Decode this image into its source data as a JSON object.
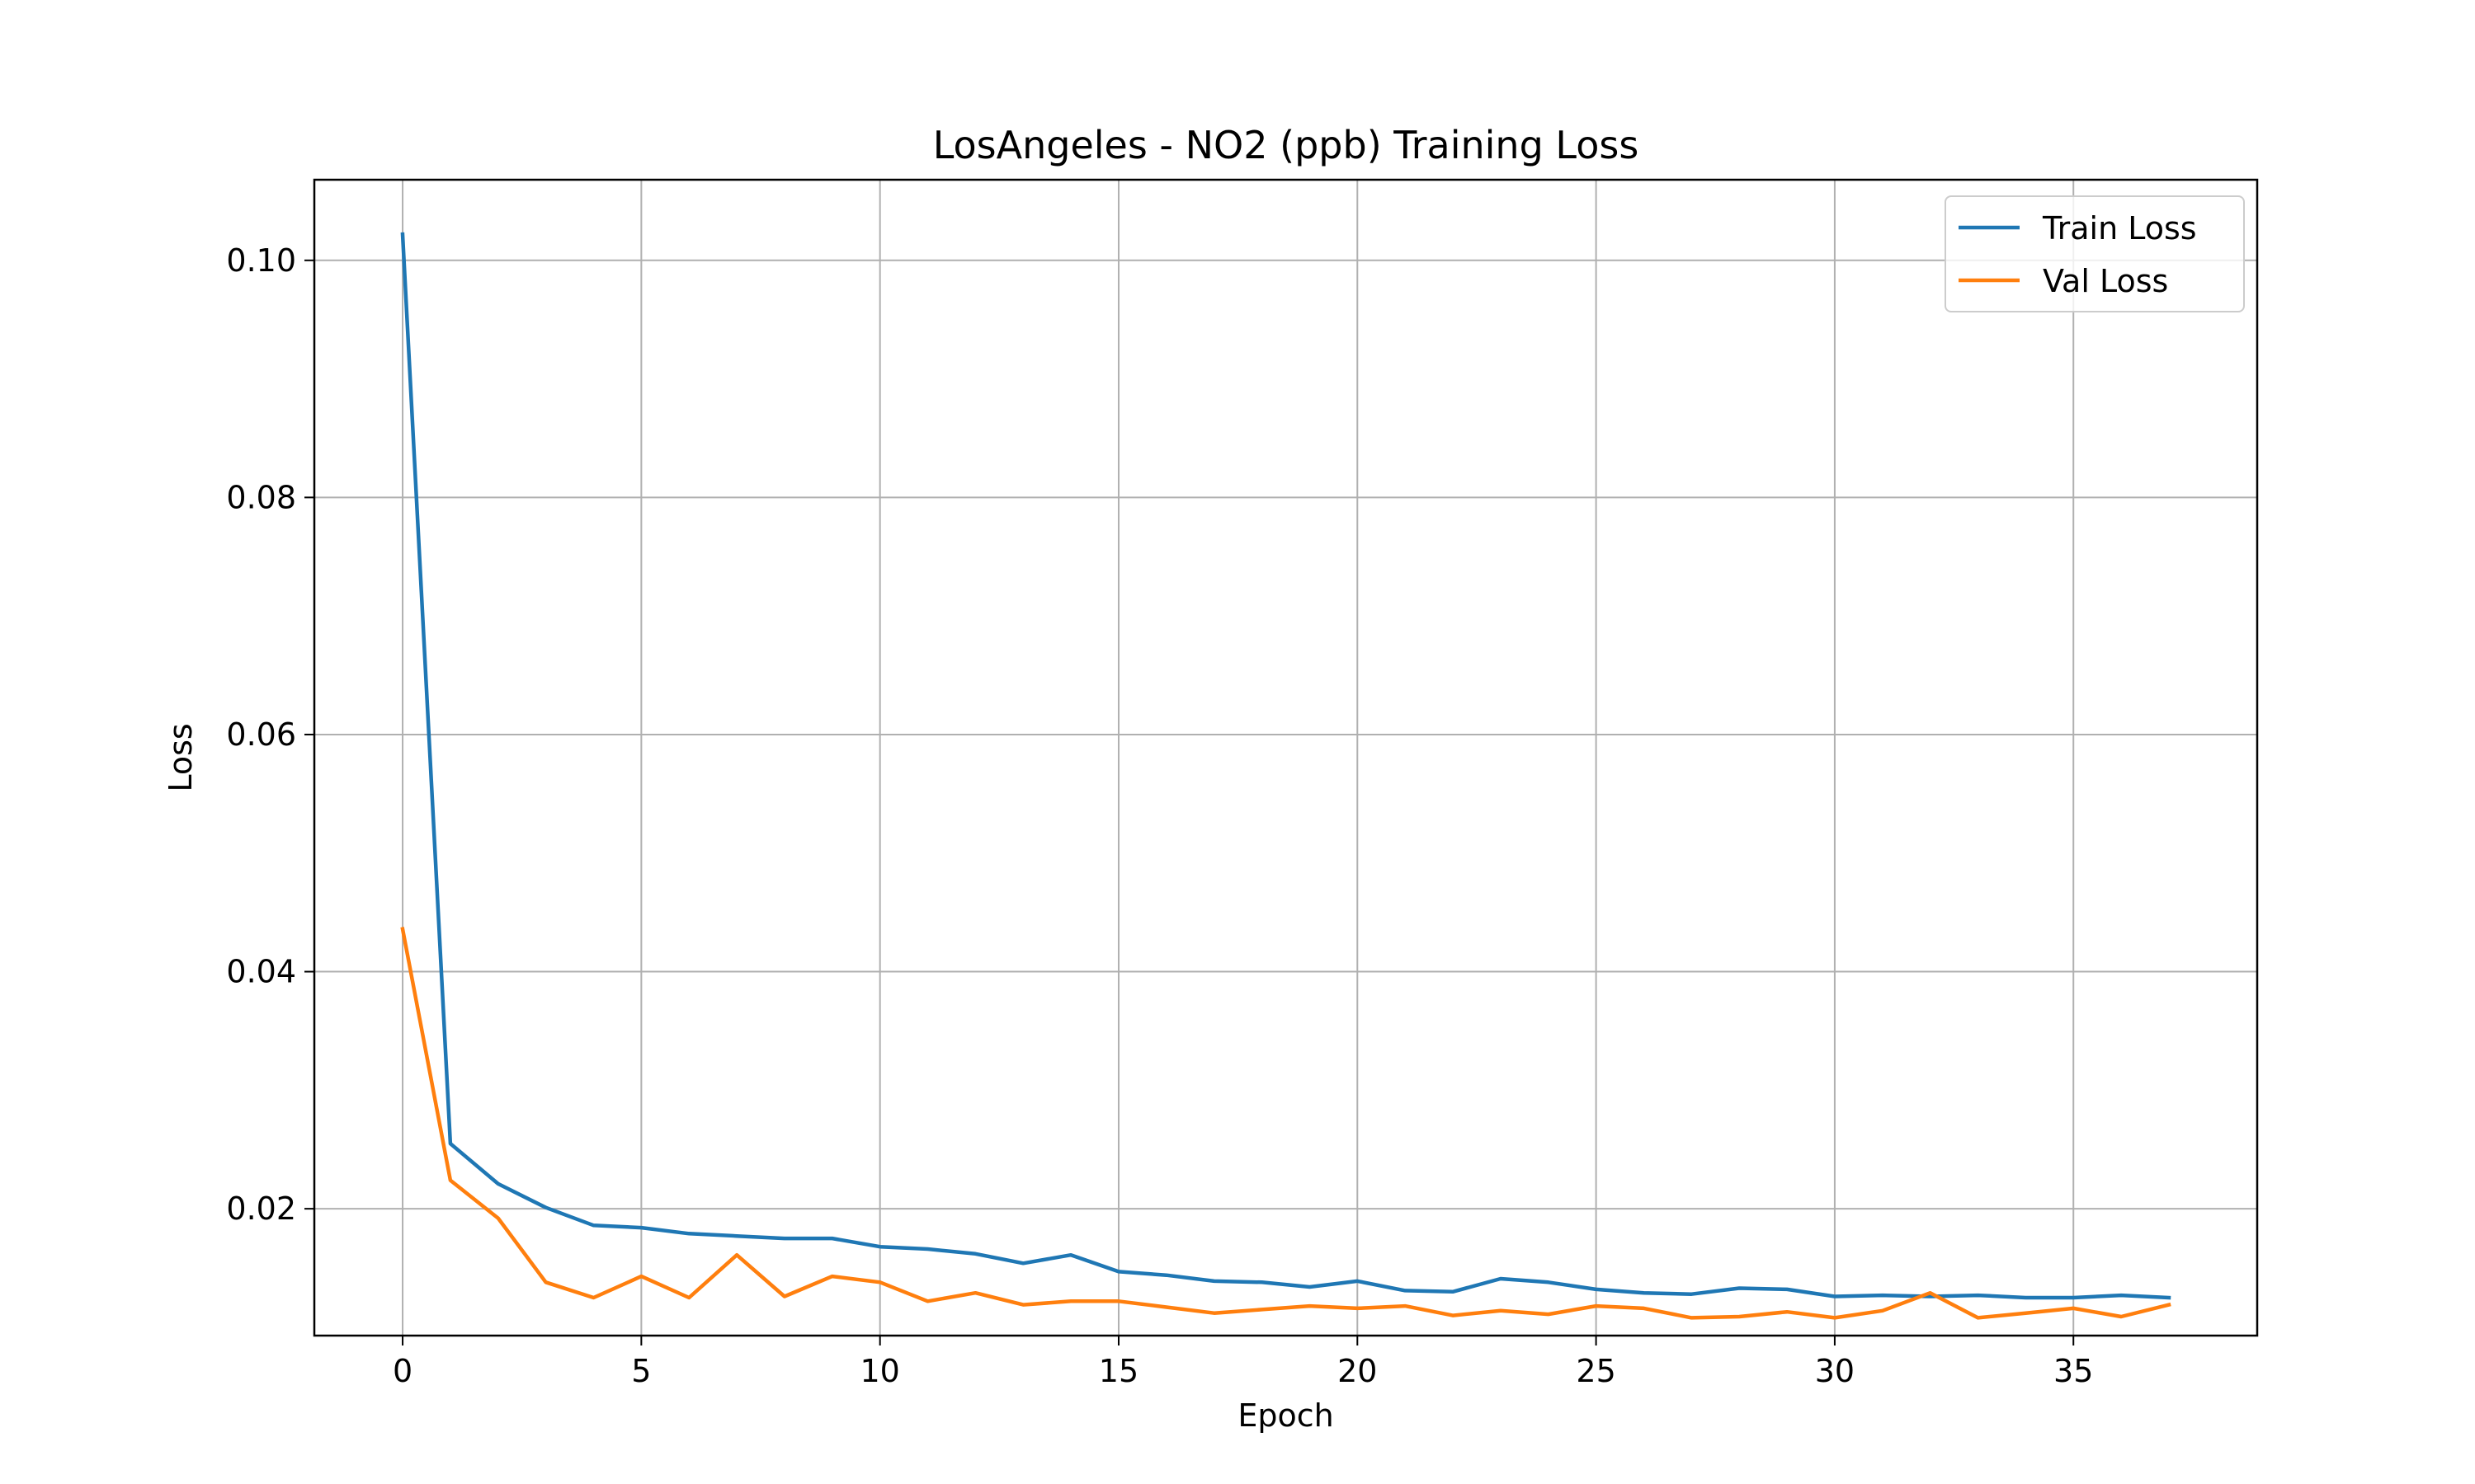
{
  "chart_data": {
    "type": "line",
    "title": "LosAngeles - NO2 (ppb) Training Loss",
    "xlabel": "Epoch",
    "ylabel": "Loss",
    "xlim": [
      -1.85,
      38.85
    ],
    "ylim": [
      0.0093,
      0.1068
    ],
    "xticks": [
      0,
      5,
      10,
      15,
      20,
      25,
      30,
      35
    ],
    "xtick_labels": [
      "0",
      "5",
      "10",
      "15",
      "20",
      "25",
      "30",
      "35"
    ],
    "yticks": [
      0.02,
      0.04,
      0.06,
      0.08,
      0.1
    ],
    "ytick_labels": [
      "0.02",
      "0.04",
      "0.06",
      "0.08",
      "0.10"
    ],
    "grid": true,
    "legend_position": "top-right",
    "x": [
      0,
      1,
      2,
      3,
      4,
      5,
      6,
      7,
      8,
      9,
      10,
      11,
      12,
      13,
      14,
      15,
      16,
      17,
      18,
      19,
      20,
      21,
      22,
      23,
      24,
      25,
      26,
      27,
      28,
      29,
      30,
      31,
      32,
      33,
      34,
      35,
      36,
      37
    ],
    "series": [
      {
        "name": "Train Loss",
        "color": "#1f77b4",
        "values": [
          0.1022,
          0.0255,
          0.0221,
          0.0201,
          0.0186,
          0.0184,
          0.0179,
          0.0177,
          0.0175,
          0.0175,
          0.0168,
          0.0166,
          0.0162,
          0.0154,
          0.0161,
          0.0147,
          0.0144,
          0.0139,
          0.0138,
          0.0134,
          0.0139,
          0.0131,
          0.013,
          0.0141,
          0.0138,
          0.0132,
          0.0129,
          0.0128,
          0.0133,
          0.0132,
          0.0126,
          0.0127,
          0.0126,
          0.0127,
          0.0125,
          0.0125,
          0.0127,
          0.0125
        ]
      },
      {
        "name": "Val Loss",
        "color": "#ff7f0e",
        "values": [
          0.0436,
          0.0224,
          0.0192,
          0.0138,
          0.0125,
          0.0143,
          0.0125,
          0.0161,
          0.0126,
          0.0143,
          0.0138,
          0.0122,
          0.0129,
          0.0119,
          0.0122,
          0.0122,
          0.0117,
          0.0112,
          0.0115,
          0.0118,
          0.0116,
          0.0118,
          0.011,
          0.0114,
          0.0111,
          0.0118,
          0.0116,
          0.0108,
          0.0109,
          0.0113,
          0.0108,
          0.0114,
          0.0129,
          0.0108,
          0.0112,
          0.0116,
          0.0109,
          0.0119
        ]
      }
    ]
  }
}
